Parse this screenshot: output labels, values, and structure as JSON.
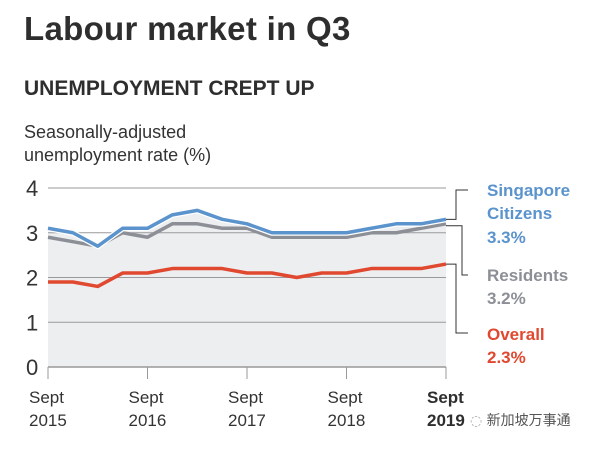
{
  "header": {
    "title": "Labour market in Q3",
    "subtitle": "UNEMPLOYMENT CREPT UP",
    "ylabel_line1": "Seasonally-adjusted",
    "ylabel_line2": "unemployment rate (%)"
  },
  "watermark": "新加坡万事通",
  "chart_data": {
    "type": "line",
    "title": "UNEMPLOYMENT CREPT UP",
    "ylabel": "Seasonally-adjusted unemployment rate (%)",
    "ylim": [
      0,
      4
    ],
    "yticks": [
      "0",
      "1",
      "2",
      "3",
      "4"
    ],
    "xticks": [
      {
        "line1": "Sept",
        "line2": "2015",
        "bold": false
      },
      {
        "line1": "Sept",
        "line2": "2016",
        "bold": false
      },
      {
        "line1": "Sept",
        "line2": "2017",
        "bold": false
      },
      {
        "line1": "Sept",
        "line2": "2018",
        "bold": false
      },
      {
        "line1": "Sept",
        "line2": "2019",
        "bold": true
      }
    ],
    "x": [
      "Sep 2015",
      "Dec 2015",
      "Mar 2016",
      "Jun 2016",
      "Sep 2016",
      "Dec 2016",
      "Mar 2017",
      "Jun 2017",
      "Sep 2017",
      "Dec 2017",
      "Mar 2018",
      "Jun 2018",
      "Sep 2018",
      "Dec 2018",
      "Mar 2019",
      "Jun 2019",
      "Sep 2019"
    ],
    "series": [
      {
        "name": "Residents",
        "label_line1": "Residents",
        "label_value": "3.2%",
        "color": "#8c8f96",
        "values": [
          2.9,
          2.8,
          2.7,
          3.0,
          2.9,
          3.2,
          3.2,
          3.1,
          3.1,
          2.9,
          2.9,
          2.9,
          2.9,
          3.0,
          3.0,
          3.1,
          3.2
        ]
      },
      {
        "name": "Singapore Citizens",
        "label_line1": "Singapore",
        "label_line2": "Citizens",
        "label_value": "3.3%",
        "color": "#5b93cc",
        "values": [
          3.1,
          3.0,
          2.7,
          3.1,
          3.1,
          3.4,
          3.5,
          3.3,
          3.2,
          3.0,
          3.0,
          3.0,
          3.0,
          3.1,
          3.2,
          3.2,
          3.3
        ]
      },
      {
        "name": "Overall",
        "label_line1": "Overall",
        "label_value": "2.3%",
        "color": "#e0482f",
        "values": [
          1.9,
          1.9,
          1.8,
          2.1,
          2.1,
          2.2,
          2.2,
          2.2,
          2.1,
          2.1,
          2.0,
          2.1,
          2.1,
          2.2,
          2.2,
          2.2,
          2.3
        ]
      }
    ],
    "grid": true,
    "shade_color": "#eceef0",
    "legend": "right"
  }
}
